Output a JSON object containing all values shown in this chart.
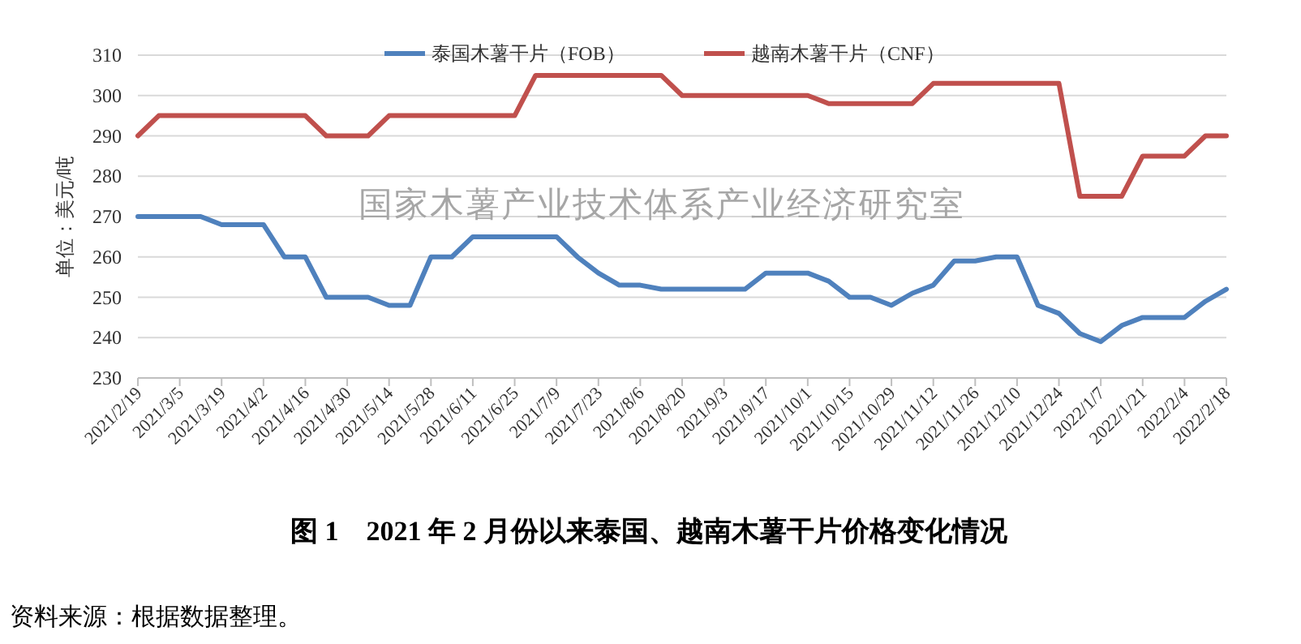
{
  "chart_data": {
    "type": "line",
    "title": "图 1　2021 年 2 月份以来泰国、越南木薯干片价格变化情况",
    "ylabel": "单位：美元/吨",
    "categories": [
      "2021/2/19",
      null,
      "2021/3/5",
      null,
      "2021/3/19",
      null,
      "2021/4/2",
      null,
      "2021/4/16",
      null,
      "2021/4/30",
      null,
      "2021/5/14",
      null,
      "2021/5/28",
      null,
      "2021/6/11",
      null,
      "2021/6/25",
      null,
      "2021/7/9",
      null,
      "2021/7/23",
      null,
      "2021/8/6",
      null,
      "2021/8/20",
      null,
      "2021/9/3",
      null,
      "2021/9/17",
      null,
      "2021/10/1",
      null,
      "2021/10/15",
      null,
      "2021/10/29",
      null,
      "2021/11/12",
      null,
      "2021/11/26",
      null,
      "2021/12/10",
      null,
      "2021/12/24",
      null,
      "2022/1/7",
      null,
      "2022/1/21",
      null,
      "2022/2/4",
      null,
      "2022/2/18"
    ],
    "series": [
      {
        "name": "泰国木薯干片（FOB）",
        "color": "#4f81bd",
        "values": [
          270,
          270,
          270,
          270,
          268,
          268,
          268,
          260,
          260,
          250,
          250,
          250,
          248,
          248,
          260,
          260,
          265,
          265,
          265,
          265,
          265,
          260,
          256,
          253,
          253,
          252,
          252,
          252,
          252,
          252,
          256,
          256,
          256,
          254,
          250,
          250,
          248,
          251,
          253,
          259,
          259,
          260,
          260,
          248,
          246,
          241,
          239,
          243,
          245,
          245,
          245,
          249,
          252
        ]
      },
      {
        "name": "越南木薯干片（CNF）",
        "color": "#c0504d",
        "values": [
          290,
          295,
          295,
          295,
          295,
          295,
          295,
          295,
          295,
          290,
          290,
          290,
          295,
          295,
          295,
          295,
          295,
          295,
          295,
          305,
          305,
          305,
          305,
          305,
          305,
          305,
          300,
          300,
          300,
          300,
          300,
          300,
          300,
          298,
          298,
          298,
          298,
          298,
          303,
          303,
          303,
          303,
          303,
          303,
          303,
          275,
          275,
          275,
          285,
          285,
          285,
          290,
          290
        ]
      }
    ],
    "ylim": [
      230,
      310
    ],
    "yticks": [
      230,
      240,
      250,
      260,
      270,
      280,
      290,
      300,
      310
    ],
    "grid": "y",
    "legend": "top",
    "marker": "none",
    "line_style": "solid",
    "annotations": [
      "国家木薯产业技术体系产业经济研究室",
      "资料来源：根据数据整理。"
    ]
  }
}
